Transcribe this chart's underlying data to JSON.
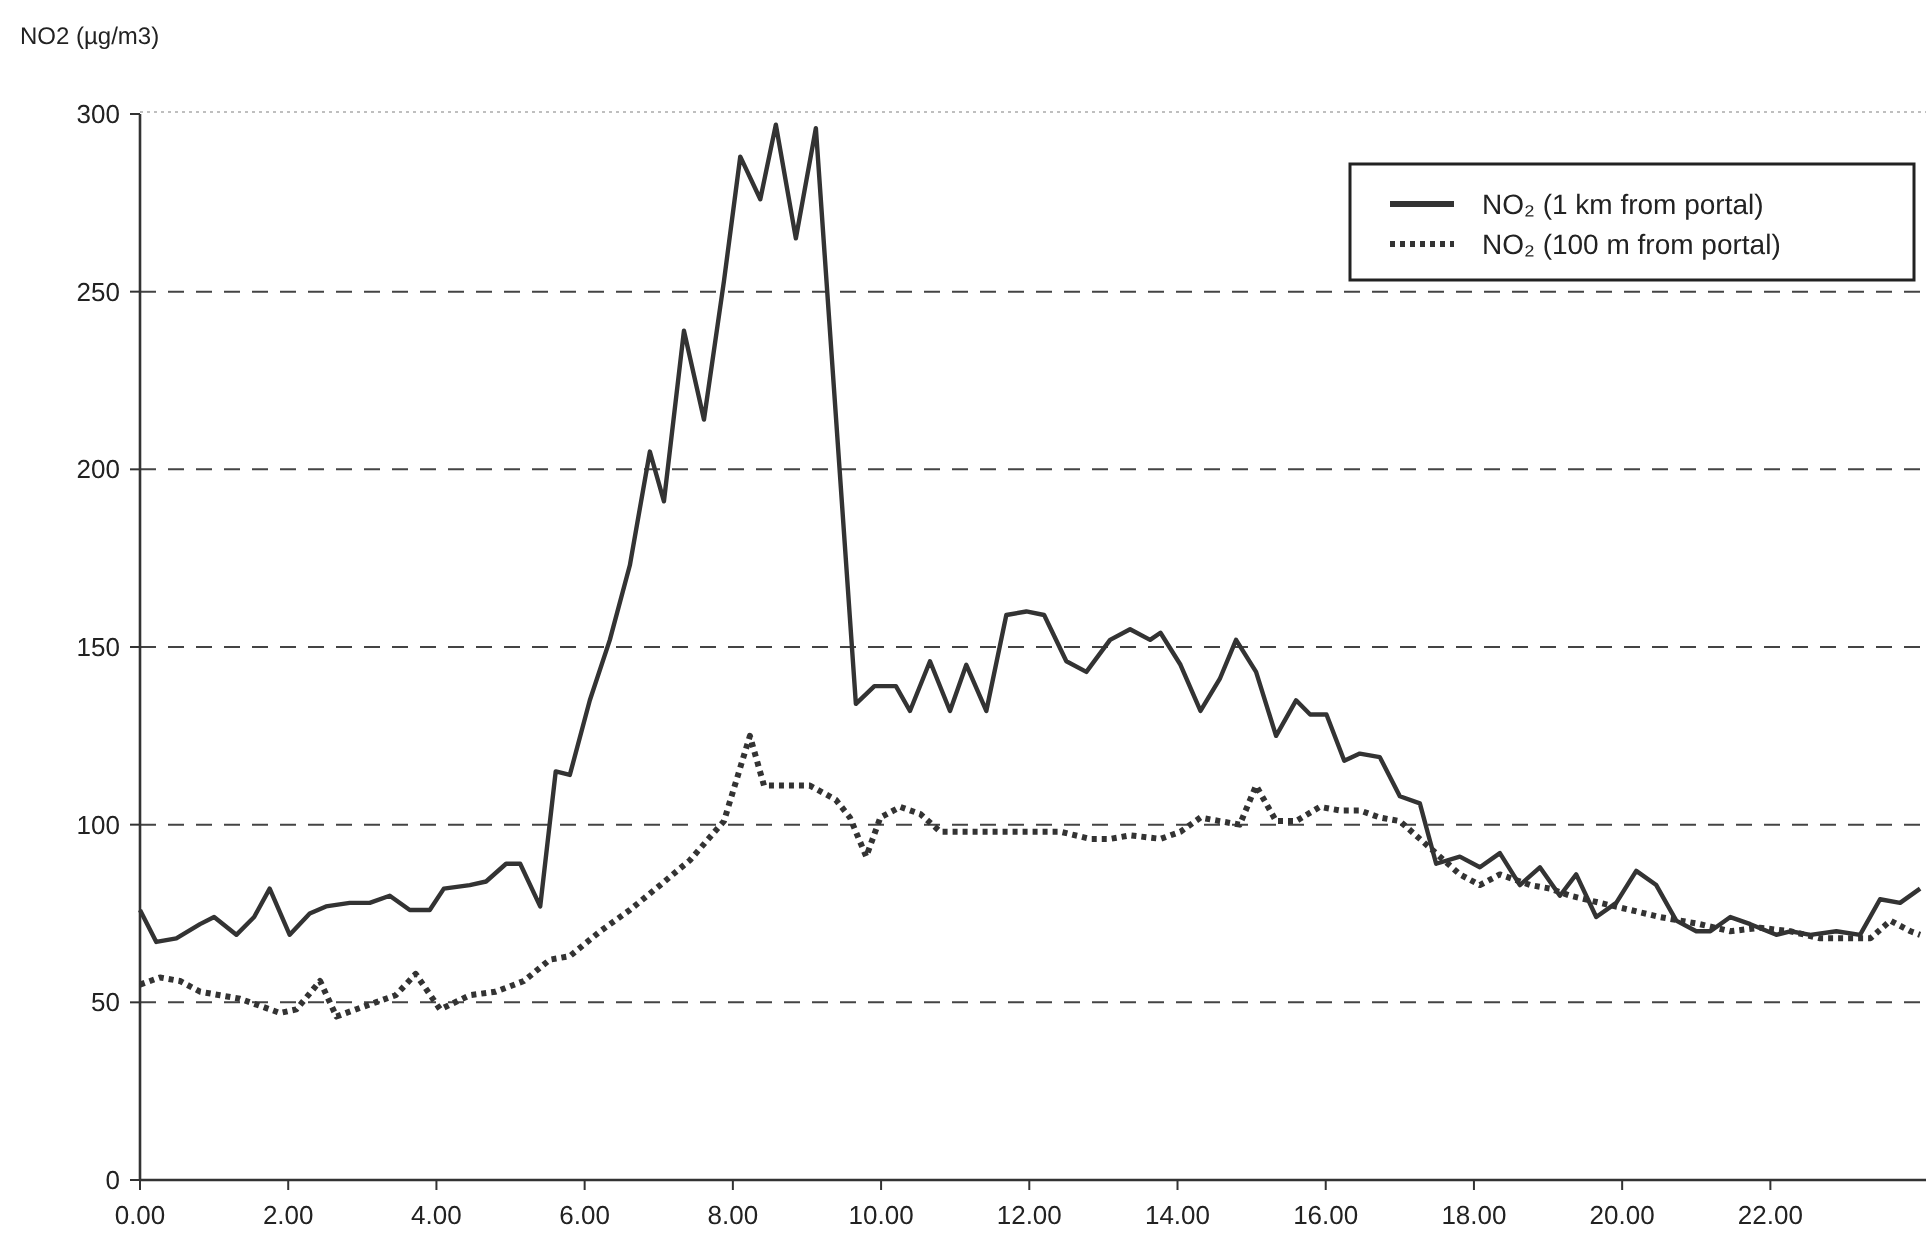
{
  "chart_data": {
    "type": "line",
    "ylabel": "NO2 (µg/m3)",
    "xlim": [
      0,
      24.1
    ],
    "ylim": [
      0,
      300
    ],
    "xticks": [
      {
        "value": 0,
        "label": "0.00"
      },
      {
        "value": 2,
        "label": "2.00"
      },
      {
        "value": 4,
        "label": "4.00"
      },
      {
        "value": 6,
        "label": "6.00"
      },
      {
        "value": 8,
        "label": "8.00"
      },
      {
        "value": 10,
        "label": "10.00"
      },
      {
        "value": 12,
        "label": "12.00"
      },
      {
        "value": 14,
        "label": "14.00"
      },
      {
        "value": 16,
        "label": "16.00"
      },
      {
        "value": 18,
        "label": "18.00"
      },
      {
        "value": 20,
        "label": "20.00"
      },
      {
        "value": 22,
        "label": "22.00"
      }
    ],
    "yticks": [
      0,
      50,
      100,
      150,
      200,
      250,
      300
    ],
    "grid": "y",
    "legend": "top right",
    "marker": "none",
    "series": [
      {
        "name": "NO₂ (1 km from portal)",
        "color": "#333333",
        "line_style": "solid",
        "x": [
          0,
          0.22,
          0.49,
          0.81,
          1.0,
          1.3,
          1.54,
          1.75,
          2.02,
          2.29,
          2.51,
          2.83,
          3.1,
          3.37,
          3.64,
          3.91,
          4.1,
          4.45,
          4.67,
          4.94,
          5.13,
          5.4,
          5.61,
          5.8,
          6.07,
          6.34,
          6.61,
          6.88,
          7.07,
          7.34,
          7.61,
          7.88,
          8.1,
          8.37,
          8.58,
          8.85,
          9.12,
          9.66,
          9.91,
          10.2,
          10.39,
          10.66,
          10.93,
          11.15,
          11.42,
          11.69,
          11.96,
          12.2,
          12.5,
          12.77,
          13.09,
          13.36,
          13.63,
          13.77,
          14.04,
          14.31,
          14.57,
          14.79,
          15.06,
          15.33,
          15.6,
          15.79,
          16.01,
          16.25,
          16.46,
          16.73,
          17.0,
          17.27,
          17.49,
          17.81,
          18.08,
          18.35,
          18.62,
          18.89,
          19.16,
          19.38,
          19.65,
          19.92,
          20.19,
          20.46,
          20.73,
          21.0,
          21.19,
          21.46,
          21.73,
          22.08,
          22.27,
          22.54,
          22.89,
          23.21,
          23.48,
          23.75,
          24.02
        ],
        "values": [
          76,
          67,
          68,
          72,
          74,
          69,
          74,
          82,
          69,
          75,
          77,
          78,
          78,
          80,
          76,
          76,
          82,
          83,
          84,
          89,
          89,
          77,
          115,
          114,
          135,
          152,
          173,
          205,
          191,
          239,
          214,
          253,
          288,
          276,
          297,
          265,
          296,
          134,
          139,
          139,
          132,
          146,
          132,
          145,
          132,
          159,
          160,
          159,
          146,
          143,
          152,
          155,
          152,
          154,
          145,
          132,
          141,
          152,
          143,
          125,
          135,
          131,
          131,
          118,
          120,
          119,
          108,
          106,
          89,
          91,
          88,
          92,
          83,
          88,
          80,
          86,
          74,
          78,
          87,
          83,
          73,
          70,
          70,
          74,
          72,
          69,
          70,
          69,
          70,
          69,
          79,
          78,
          82
        ]
      },
      {
        "name": "NO₂ (100 m from portal)",
        "color": "#333333",
        "line_style": "dotted",
        "x": [
          0,
          0.27,
          0.54,
          0.81,
          1.08,
          1.35,
          1.62,
          1.89,
          2.11,
          2.43,
          2.65,
          2.91,
          3.18,
          3.45,
          3.72,
          4.05,
          4.45,
          4.8,
          5.18,
          5.53,
          5.8,
          6.21,
          6.61,
          7.02,
          7.42,
          7.88,
          8.23,
          8.42,
          8.77,
          9.04,
          9.39,
          9.58,
          9.8,
          9.99,
          10.26,
          10.53,
          10.8,
          11.2,
          11.61,
          12.01,
          12.42,
          12.82,
          13.09,
          13.36,
          13.77,
          14.04,
          14.31,
          14.57,
          14.84,
          15.06,
          15.33,
          15.6,
          15.92,
          16.19,
          16.46,
          16.73,
          17.0,
          17.27,
          17.54,
          17.81,
          18.08,
          18.35,
          18.76,
          19.03,
          19.3,
          19.7,
          20.11,
          20.51,
          21.05,
          21.46,
          21.86,
          22.27,
          22.67,
          23.08,
          23.35,
          23.62,
          23.89,
          24.02
        ],
        "values": [
          55,
          57,
          56,
          53,
          52,
          51,
          49,
          47,
          48,
          56,
          46,
          48,
          50,
          52,
          58,
          48,
          52,
          53,
          56,
          62,
          63,
          70,
          76,
          83,
          90,
          101,
          125,
          111,
          111,
          111,
          107,
          102,
          91,
          102,
          105,
          103,
          98,
          98,
          98,
          98,
          98,
          96,
          96,
          97,
          96,
          98,
          102,
          101,
          100,
          111,
          101,
          101,
          105,
          104,
          104,
          102,
          101,
          96,
          91,
          86,
          83,
          86,
          83,
          82,
          80,
          78,
          76,
          74,
          72,
          70,
          71,
          70,
          68,
          68,
          68,
          73,
          70,
          69
        ]
      }
    ]
  }
}
